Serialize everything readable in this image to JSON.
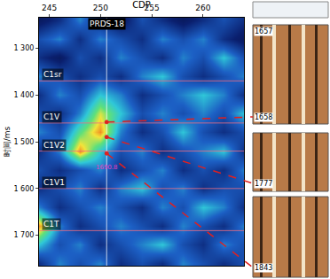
{
  "chart_data": {
    "type": "heatmap",
    "x_label": "CDP",
    "y_label": "时间/ms",
    "xlim": [
      244,
      264
    ],
    "xticks": [
      245,
      250,
      255,
      260
    ],
    "ylim": [
      1765,
      1235
    ],
    "yticks": [
      {
        "value": 1300,
        "label": "1 300"
      },
      {
        "value": 1400,
        "label": "1 400"
      },
      {
        "value": 1500,
        "label": "1 500"
      },
      {
        "value": 1600,
        "label": "1 600"
      },
      {
        "value": 1700,
        "label": "1 700"
      }
    ],
    "x": [
      244,
      246,
      248,
      250,
      252,
      254,
      256,
      258,
      260,
      262,
      264
    ],
    "y": [
      1240,
      1280,
      1320,
      1360,
      1400,
      1440,
      1480,
      1520,
      1560,
      1600,
      1640,
      1680,
      1720,
      1760
    ],
    "z": [
      [
        0.2,
        0.3,
        0.5,
        0.3,
        0.2,
        0.4,
        0.3,
        0.2,
        0.3,
        0.4,
        0.3
      ],
      [
        0.4,
        0.5,
        0.3,
        0.5,
        0.4,
        0.3,
        0.5,
        0.4,
        0.5,
        0.3,
        0.2
      ],
      [
        0.3,
        0.2,
        0.4,
        0.3,
        0.5,
        0.4,
        0.3,
        0.5,
        0.4,
        0.6,
        0.4
      ],
      [
        0.5,
        0.4,
        0.3,
        0.4,
        0.3,
        0.5,
        0.6,
        0.4,
        0.3,
        0.4,
        0.5
      ],
      [
        0.3,
        0.5,
        0.4,
        0.6,
        0.5,
        0.3,
        0.4,
        0.5,
        0.6,
        0.5,
        0.3
      ],
      [
        0.4,
        0.3,
        0.5,
        0.8,
        0.6,
        0.4,
        0.5,
        0.4,
        0.5,
        0.4,
        0.6
      ],
      [
        0.5,
        0.4,
        0.7,
        0.9,
        0.5,
        0.3,
        0.4,
        0.6,
        0.4,
        0.3,
        0.4
      ],
      [
        0.3,
        0.5,
        0.9,
        0.6,
        0.4,
        0.5,
        0.3,
        0.4,
        0.5,
        0.6,
        0.3
      ],
      [
        0.4,
        0.3,
        0.4,
        0.5,
        0.3,
        0.4,
        0.5,
        0.3,
        0.4,
        0.3,
        0.5
      ],
      [
        0.3,
        0.4,
        0.5,
        0.3,
        0.5,
        0.6,
        0.4,
        0.5,
        0.3,
        0.4,
        0.4
      ],
      [
        0.5,
        0.3,
        0.4,
        0.5,
        0.4,
        0.3,
        0.5,
        0.4,
        0.6,
        0.5,
        0.3
      ],
      [
        0.9,
        0.5,
        0.3,
        0.4,
        0.5,
        0.4,
        0.3,
        0.5,
        0.4,
        0.3,
        0.5
      ],
      [
        0.6,
        0.4,
        0.5,
        0.3,
        0.4,
        0.5,
        0.6,
        0.4,
        0.3,
        0.5,
        0.4
      ],
      [
        0.3,
        0.5,
        0.4,
        0.5,
        0.3,
        0.4,
        0.3,
        0.5,
        0.4,
        0.3,
        0.4
      ]
    ],
    "zlim": [
      0,
      1
    ],
    "well": {
      "name": "PRDS-18",
      "cdp": 250.6,
      "depth_label": 1690.8,
      "depth_label_time": 1555
    },
    "horizons": [
      {
        "name": "C1sr",
        "time": 1370
      },
      {
        "name": "C1V",
        "time": 1460
      },
      {
        "name": "C1V2",
        "time": 1520
      },
      {
        "name": "C1V1",
        "time": 1600
      },
      {
        "name": "C1T",
        "time": 1690
      }
    ],
    "log_depths": [
      1657,
      1658,
      1777,
      1843
    ],
    "links": [
      {
        "time": 1458,
        "depth": 1658
      },
      {
        "time": 1490,
        "depth": 1777
      },
      {
        "time": 1525,
        "depth": 1843
      }
    ]
  }
}
